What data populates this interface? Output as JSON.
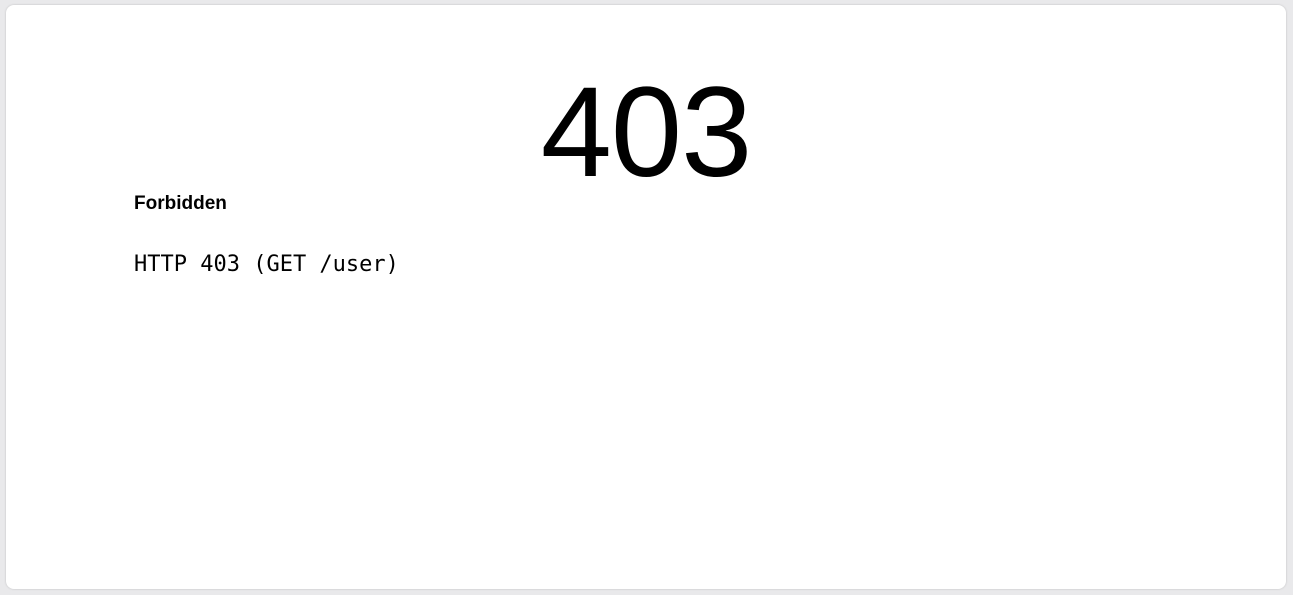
{
  "error": {
    "code": "403",
    "title": "Forbidden",
    "detail": "HTTP 403 (GET /user)"
  },
  "colors": {
    "background": "#e9e9eb",
    "panel": "#ffffff",
    "text": "#000000"
  }
}
